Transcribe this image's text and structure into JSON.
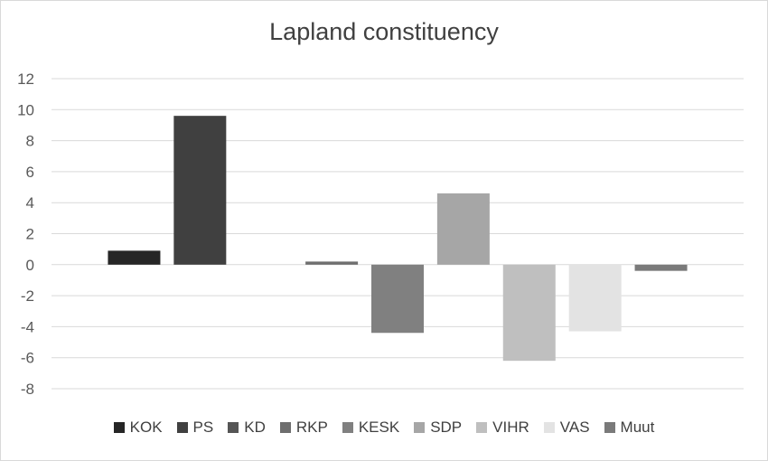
{
  "chart_data": {
    "type": "bar",
    "title": "Lapland constituency",
    "xlabel": "",
    "ylabel": "",
    "ylim": [
      -8,
      12
    ],
    "yticks": [
      12,
      10,
      8,
      6,
      4,
      2,
      0,
      -2,
      -4,
      -6,
      -8
    ],
    "grid": true,
    "legend_position": "bottom",
    "series": [
      {
        "name": "KOK",
        "value": 0.9,
        "color": "#262626"
      },
      {
        "name": "PS",
        "value": 9.6,
        "color": "#404040"
      },
      {
        "name": "KD",
        "value": 0,
        "color": "#555555"
      },
      {
        "name": "RKP",
        "value": 0.2,
        "color": "#6e6e6e"
      },
      {
        "name": "KESK",
        "value": -4.4,
        "color": "#808080"
      },
      {
        "name": "SDP",
        "value": 4.6,
        "color": "#a6a6a6"
      },
      {
        "name": "VIHR",
        "value": -6.2,
        "color": "#bfbfbf"
      },
      {
        "name": "VAS",
        "value": -4.3,
        "color": "#e3e3e3"
      },
      {
        "name": "Muut",
        "value": -0.4,
        "color": "#7a7a7a"
      }
    ]
  }
}
